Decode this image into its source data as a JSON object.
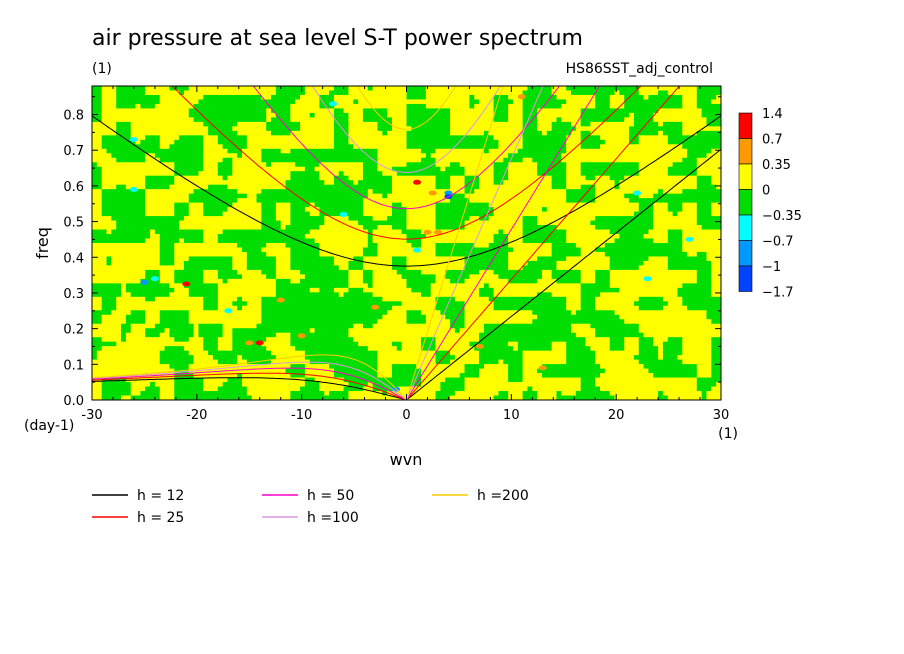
{
  "header": {
    "title": "air pressure at sea level S-T power spectrum",
    "units": "(1)",
    "run_name": "HS86SST_adj_control"
  },
  "chart_data": {
    "type": "heatmap",
    "title": "air pressure at sea level S-T power spectrum",
    "xlabel": "wvn",
    "ylabel": "freq",
    "x_units": "(1)",
    "y_units": "(day-1)",
    "xlim": [
      -30,
      30
    ],
    "ylim": [
      0,
      0.88
    ],
    "x_ticks": [
      -30,
      -20,
      -10,
      0,
      10,
      20,
      30
    ],
    "y_ticks": [
      0.0,
      0.1,
      0.2,
      0.3,
      0.4,
      0.5,
      0.6,
      0.7,
      0.8
    ],
    "x_tick_labels": [
      "-30",
      "-20",
      "-10",
      "0",
      "10",
      "20",
      "30"
    ],
    "y_tick_labels": [
      "0.0",
      "0.1",
      "0.2",
      "0.3",
      "0.4",
      "0.5",
      "0.6",
      "0.7",
      "0.8"
    ],
    "colorbar": {
      "levels": [
        1.4,
        0.7,
        0.35,
        0,
        -0.35,
        -0.7,
        -1,
        -1.7
      ],
      "labels": [
        "1.4",
        "0.7",
        "0.35",
        "0",
        "−0.35",
        "−0.7",
        "−1",
        "−1.7"
      ],
      "colors": [
        "#ff0000",
        "#ff9900",
        "#ffff00",
        "#00dd00",
        "#00ffff",
        "#0099ff",
        "#0044ff"
      ]
    },
    "series": [
      {
        "name": "h = 12",
        "h": 12,
        "color": "#000000"
      },
      {
        "name": "h = 25",
        "h": 25,
        "color": "#ff0000"
      },
      {
        "name": "h = 50",
        "h": 50,
        "color": "#ff00cc"
      },
      {
        "name": "h =100",
        "h": 100,
        "color": "#dd99dd"
      },
      {
        "name": "h =200",
        "h": 200,
        "color": "#ffcc00"
      }
    ],
    "grid": false,
    "legend_position": "bottom-left"
  }
}
